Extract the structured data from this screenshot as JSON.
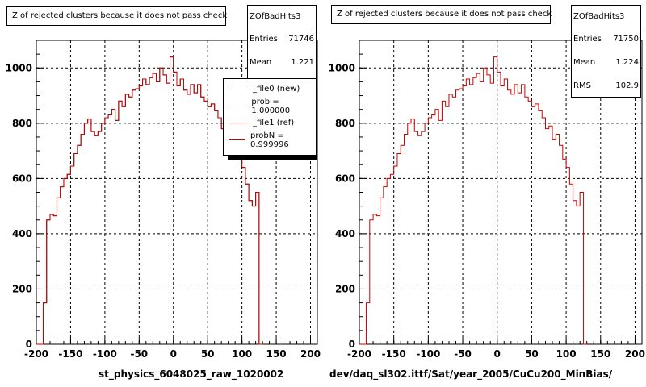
{
  "panels": [
    {
      "title": "Z of rejected clusters  because it does not pass check",
      "stats": {
        "name": "ZOfBadHits3",
        "entries_label": "Entries",
        "entries": "71746",
        "mean_label": "Mean",
        "mean": "1.221"
      },
      "xlabel": "st_physics_6048025_raw_1020002",
      "legend": [
        {
          "label": "_file0 (new)",
          "color": "#000000"
        },
        {
          "label": "prob = 1.000000",
          "color": "#000000"
        },
        {
          "label": "_file1 (ref)",
          "color": "#cc0000"
        },
        {
          "label": "probN = 0.999996",
          "color": "#cc0000"
        }
      ]
    },
    {
      "title": "Z of rejected clusters  because it does not pass check",
      "stats": {
        "name": "ZOfBadHits3",
        "entries_label": "Entries",
        "entries": "71750",
        "mean_label": "Mean",
        "mean": "1.224",
        "rms_label": "RMS",
        "rms": "102.9"
      },
      "xlabel": "dev/daq_sl302.ittf/Sat/year_2005/CuCu200_MinBias/"
    }
  ],
  "chart_data": [
    {
      "type": "histogram",
      "title": "Z of rejected clusters  because it does not pass check",
      "xlabel": "st_physics_6048025_raw_1020002",
      "xlim": [
        -200,
        210
      ],
      "ylim": [
        0,
        1100
      ],
      "xticks": [
        -200,
        -150,
        -100,
        -50,
        0,
        50,
        100,
        150,
        200
      ],
      "yticks": [
        0,
        200,
        400,
        600,
        800,
        1000
      ],
      "grid": true,
      "bin_width": 5,
      "x_start": -200,
      "series": [
        {
          "name": "_file0 (new)",
          "color": "#000000",
          "values": [
            0,
            0,
            150,
            450,
            470,
            465,
            530,
            570,
            600,
            615,
            645,
            690,
            720,
            760,
            800,
            815,
            770,
            755,
            770,
            800,
            820,
            830,
            850,
            810,
            880,
            860,
            905,
            895,
            920,
            925,
            935,
            960,
            940,
            965,
            980,
            950,
            1000,
            975,
            945,
            1040,
            985,
            935,
            960,
            920,
            905,
            940,
            910,
            940,
            895,
            880,
            860,
            870,
            845,
            820,
            780,
            790,
            740,
            760,
            720,
            670,
            640,
            580,
            520,
            500,
            550,
            0
          ]
        },
        {
          "name": "_file1 (ref)",
          "color": "#cc0000",
          "values": [
            0,
            0,
            150,
            450,
            470,
            465,
            530,
            570,
            600,
            615,
            645,
            690,
            720,
            760,
            800,
            815,
            770,
            755,
            770,
            800,
            820,
            830,
            850,
            810,
            880,
            860,
            905,
            895,
            920,
            925,
            935,
            960,
            940,
            965,
            980,
            950,
            1000,
            975,
            945,
            1040,
            985,
            935,
            960,
            920,
            905,
            940,
            910,
            940,
            895,
            880,
            860,
            870,
            845,
            820,
            780,
            790,
            740,
            760,
            720,
            670,
            640,
            580,
            520,
            500,
            550,
            0
          ]
        }
      ]
    },
    {
      "type": "histogram",
      "title": "Z of rejected clusters  because it does not pass check",
      "xlabel": "dev/daq_sl302.ittf/Sat/year_2005/CuCu200_MinBias/",
      "xlim": [
        -200,
        210
      ],
      "ylim": [
        0,
        1100
      ],
      "xticks": [
        -200,
        -150,
        -100,
        -50,
        0,
        50,
        100,
        150,
        200
      ],
      "yticks": [
        0,
        200,
        400,
        600,
        800,
        1000
      ],
      "grid": true,
      "bin_width": 5,
      "x_start": -200,
      "series": [
        {
          "name": "ZOfBadHits3",
          "color": "#cc0000",
          "values": [
            0,
            0,
            150,
            450,
            470,
            465,
            530,
            570,
            600,
            615,
            645,
            690,
            720,
            760,
            800,
            815,
            770,
            755,
            770,
            800,
            820,
            830,
            850,
            810,
            880,
            860,
            905,
            895,
            920,
            925,
            935,
            960,
            940,
            965,
            980,
            950,
            1000,
            975,
            945,
            1040,
            985,
            935,
            960,
            920,
            905,
            940,
            910,
            940,
            895,
            880,
            860,
            870,
            845,
            820,
            780,
            790,
            740,
            760,
            720,
            670,
            640,
            580,
            520,
            500,
            550,
            0
          ]
        }
      ]
    }
  ]
}
